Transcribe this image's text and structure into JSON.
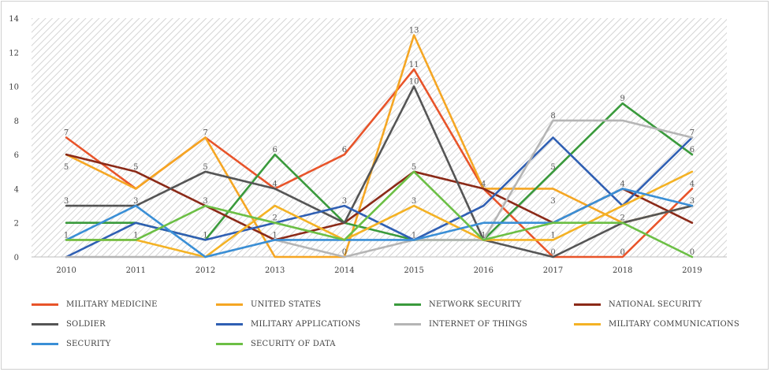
{
  "chart_data": {
    "type": "line",
    "title": "",
    "xlabel": "",
    "ylabel": "",
    "x": [
      "2010",
      "2011",
      "2012",
      "2013",
      "2014",
      "2015",
      "2016",
      "2017",
      "2018",
      "2019"
    ],
    "ylim": [
      0,
      14
    ],
    "yticks": [
      "0",
      "2",
      "4",
      "6",
      "8",
      "10",
      "12",
      "14"
    ],
    "grid": false,
    "plot_background": "diagonal hatch",
    "legend_position": "bottom",
    "series": [
      {
        "name": "MILITARY MEDICINE",
        "color": "#e8542a",
        "values": [
          7,
          4,
          7,
          4,
          6,
          11,
          4,
          0,
          0,
          4
        ]
      },
      {
        "name": "UNITED STATES",
        "color": "#f5a623",
        "values": [
          6,
          4,
          7,
          0,
          0,
          13,
          4,
          4,
          2,
          3
        ]
      },
      {
        "name": "NETWORK SECURITY",
        "color": "#3a9a3c",
        "values": [
          2,
          2,
          1,
          6,
          2,
          1,
          1,
          5,
          9,
          6
        ]
      },
      {
        "name": "NATIONAL SECURITY",
        "color": "#8b2a18",
        "values": [
          6,
          5,
          3,
          1,
          2,
          5,
          4,
          2,
          4,
          2
        ]
      },
      {
        "name": "SOLDIER",
        "color": "#555555",
        "values": [
          3,
          3,
          5,
          4,
          2,
          10,
          1,
          0,
          2,
          3
        ]
      },
      {
        "name": "MILITARY APPLICATIONS",
        "color": "#2f5fb3",
        "values": [
          0,
          2,
          1,
          2,
          3,
          1,
          3,
          7,
          3,
          7
        ]
      },
      {
        "name": "INTERNET OF THINGS",
        "color": "#b5b5b5",
        "values": [
          0,
          0,
          0,
          1,
          0,
          1,
          1,
          8,
          8,
          7
        ]
      },
      {
        "name": "MILITARY COMMUNICATIONS",
        "color": "#f4b224",
        "values": [
          1,
          1,
          0,
          3,
          1,
          3,
          1,
          1,
          3,
          5
        ]
      },
      {
        "name": "SECURITY",
        "color": "#3a8fd6",
        "values": [
          1,
          3,
          0,
          1,
          1,
          1,
          2,
          2,
          4,
          3
        ]
      },
      {
        "name": "SECURITY OF DATA",
        "color": "#6cbf45",
        "values": [
          1,
          1,
          3,
          2,
          1,
          5,
          1,
          2,
          2,
          0
        ]
      }
    ],
    "data_labels": [
      {
        "x": "2010",
        "values": [
          "7",
          "5",
          "3",
          "1"
        ]
      },
      {
        "x": "2011",
        "values": [
          "5",
          "3",
          "1"
        ]
      },
      {
        "x": "2012",
        "values": [
          "7",
          "5",
          "3",
          "1"
        ]
      },
      {
        "x": "2013",
        "values": [
          "6",
          "4",
          "2",
          "1"
        ]
      },
      {
        "x": "2014",
        "values": [
          "6",
          "3",
          "0"
        ]
      },
      {
        "x": "2015",
        "values": [
          "13",
          "11",
          "10",
          "5",
          "3",
          "1"
        ]
      },
      {
        "x": "2016",
        "values": [
          "4",
          "1"
        ]
      },
      {
        "x": "2017",
        "values": [
          "8",
          "5",
          "3",
          "1",
          "0"
        ]
      },
      {
        "x": "2018",
        "values": [
          "9",
          "4",
          "2",
          "0"
        ]
      },
      {
        "x": "2019",
        "values": [
          "7",
          "6",
          "4",
          "3",
          "0"
        ]
      }
    ]
  }
}
